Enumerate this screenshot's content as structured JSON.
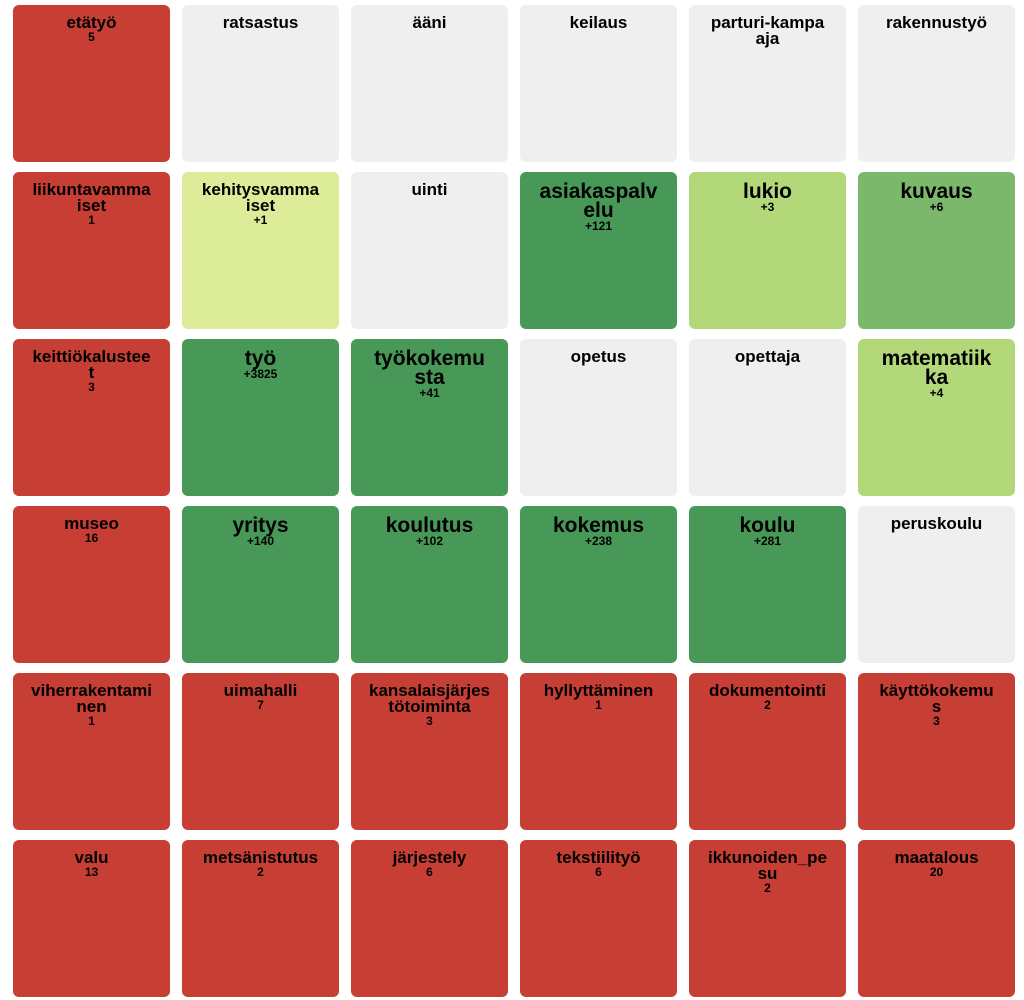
{
  "colors": {
    "red": "#c73e34",
    "gray": "#efefef",
    "pale": "#dcec98",
    "lightgreen": "#b2d87a",
    "midgreen": "#7bb86b",
    "green": "#489858"
  },
  "tiles": [
    {
      "term": "etätyö",
      "count": "5",
      "color": "red",
      "big": false
    },
    {
      "term": "ratsastus",
      "count": "",
      "color": "gray",
      "big": false
    },
    {
      "term": "ääni",
      "count": "",
      "color": "gray",
      "big": false
    },
    {
      "term": "keilaus",
      "count": "",
      "color": "gray",
      "big": false
    },
    {
      "term": "parturi-kampaaja",
      "count": "",
      "color": "gray",
      "big": false
    },
    {
      "term": "rakennustyö",
      "count": "",
      "color": "gray",
      "big": false
    },
    {
      "term": "liikuntavammaiset",
      "count": "1",
      "color": "red",
      "big": false
    },
    {
      "term": "kehitysvammaiset",
      "count": "+1",
      "color": "pale",
      "big": false
    },
    {
      "term": "uinti",
      "count": "",
      "color": "gray",
      "big": false
    },
    {
      "term": "asiakaspalvelu",
      "count": "+121",
      "color": "green",
      "big": true
    },
    {
      "term": "lukio",
      "count": "+3",
      "color": "lightgreen",
      "big": true
    },
    {
      "term": "kuvaus",
      "count": "+6",
      "color": "midgreen",
      "big": true
    },
    {
      "term": "keittiökalusteet",
      "count": "3",
      "color": "red",
      "big": false
    },
    {
      "term": "työ",
      "count": "+3825",
      "color": "green",
      "big": true
    },
    {
      "term": "työkokemusta",
      "count": "+41",
      "color": "green",
      "big": true
    },
    {
      "term": "opetus",
      "count": "",
      "color": "gray",
      "big": false
    },
    {
      "term": "opettaja",
      "count": "",
      "color": "gray",
      "big": false
    },
    {
      "term": "matematiikka",
      "count": "+4",
      "color": "lightgreen",
      "big": true
    },
    {
      "term": "museo",
      "count": "16",
      "color": "red",
      "big": false
    },
    {
      "term": "yritys",
      "count": "+140",
      "color": "green",
      "big": true
    },
    {
      "term": "koulutus",
      "count": "+102",
      "color": "green",
      "big": true
    },
    {
      "term": "kokemus",
      "count": "+238",
      "color": "green",
      "big": true
    },
    {
      "term": "koulu",
      "count": "+281",
      "color": "green",
      "big": true
    },
    {
      "term": "peruskoulu",
      "count": "",
      "color": "gray",
      "big": false
    },
    {
      "term": "viherrakentaminen",
      "count": "1",
      "color": "red",
      "big": false
    },
    {
      "term": "uimahalli",
      "count": "7",
      "color": "red",
      "big": false
    },
    {
      "term": "kansalaisjärjestötoiminta",
      "count": "3",
      "color": "red",
      "big": false
    },
    {
      "term": "hyllyttäminen",
      "count": "1",
      "color": "red",
      "big": false
    },
    {
      "term": "dokumentointi",
      "count": "2",
      "color": "red",
      "big": false
    },
    {
      "term": "käyttökokemus",
      "count": "3",
      "color": "red",
      "big": false
    },
    {
      "term": "valu",
      "count": "13",
      "color": "red",
      "big": false
    },
    {
      "term": "metsänistutus",
      "count": "2",
      "color": "red",
      "big": false
    },
    {
      "term": "järjestely",
      "count": "6",
      "color": "red",
      "big": false
    },
    {
      "term": "tekstiilityö",
      "count": "6",
      "color": "red",
      "big": false
    },
    {
      "term": "ikkunoiden_pesu",
      "count": "2",
      "color": "red",
      "big": false
    },
    {
      "term": "maatalous",
      "count": "20",
      "color": "red",
      "big": false
    }
  ]
}
